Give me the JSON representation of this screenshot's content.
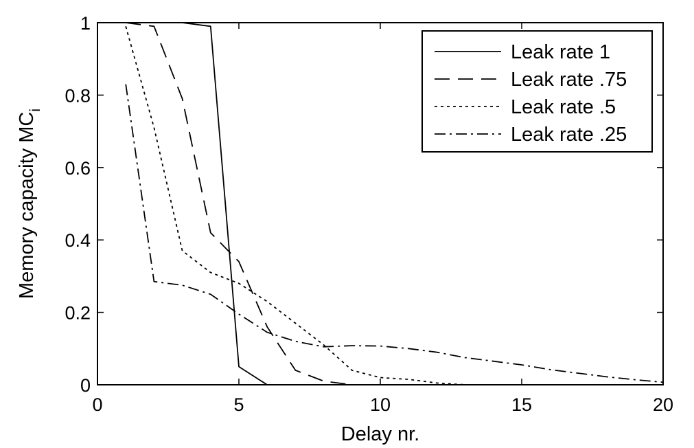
{
  "chart_data": {
    "type": "line",
    "xlabel": "Delay nr.",
    "ylabel_main": "Memory capacity MC",
    "ylabel_sub": "i",
    "xlim": [
      0,
      20
    ],
    "ylim": [
      0,
      1
    ],
    "xticks": [
      0,
      5,
      10,
      15,
      20
    ],
    "xtick_labels": [
      "0",
      "5",
      "10",
      "15",
      "20"
    ],
    "yticks": [
      0,
      0.2,
      0.4,
      0.6,
      0.8,
      1
    ],
    "ytick_labels": [
      "0",
      "0.2",
      "0.4",
      "0.6",
      "0.8",
      "1"
    ],
    "grid": false,
    "legend_position": "top-right",
    "series": [
      {
        "name": "Leak rate 1",
        "dash": "solid",
        "x": [
          1,
          2,
          3,
          4,
          5,
          6,
          7,
          8,
          9,
          10,
          11,
          12,
          13,
          14,
          15,
          16,
          17,
          18,
          19,
          20
        ],
        "y": [
          1.0,
          1.0,
          1.0,
          0.99,
          0.05,
          0.0,
          0.0,
          0.0,
          0.0,
          0.0,
          0.0,
          0.0,
          0.0,
          0.0,
          0.0,
          0.0,
          0.0,
          0.0,
          0.0,
          0.0
        ]
      },
      {
        "name": "Leak rate .75",
        "dash": "dashed",
        "x": [
          1,
          2,
          3,
          4,
          5,
          6,
          7,
          8,
          9,
          10,
          11,
          12,
          13,
          14,
          15,
          16,
          17,
          18,
          19,
          20
        ],
        "y": [
          1.0,
          0.99,
          0.79,
          0.42,
          0.34,
          0.16,
          0.04,
          0.01,
          0.0,
          0.0,
          0.0,
          0.0,
          0.0,
          0.0,
          0.0,
          0.0,
          0.0,
          0.0,
          0.0,
          0.0
        ]
      },
      {
        "name": "Leak rate .5",
        "dash": "dotted",
        "x": [
          1,
          2,
          3,
          4,
          5,
          6,
          7,
          8,
          9,
          10,
          11,
          12,
          13,
          14,
          15,
          16,
          17,
          18,
          19,
          20
        ],
        "y": [
          0.99,
          0.71,
          0.37,
          0.31,
          0.28,
          0.23,
          0.17,
          0.11,
          0.04,
          0.02,
          0.015,
          0.005,
          0.0,
          0.0,
          0.0,
          0.0,
          0.0,
          0.0,
          0.0,
          0.0
        ]
      },
      {
        "name": "Leak rate .25",
        "dash": "dashdot",
        "x": [
          1,
          2,
          3,
          4,
          5,
          6,
          7,
          8,
          9,
          10,
          11,
          12,
          13,
          14,
          15,
          16,
          17,
          18,
          19,
          20
        ],
        "y": [
          0.83,
          0.285,
          0.275,
          0.25,
          0.195,
          0.145,
          0.12,
          0.105,
          0.108,
          0.107,
          0.1,
          0.09,
          0.075,
          0.065,
          0.055,
          0.042,
          0.032,
          0.022,
          0.014,
          0.007
        ]
      }
    ]
  }
}
